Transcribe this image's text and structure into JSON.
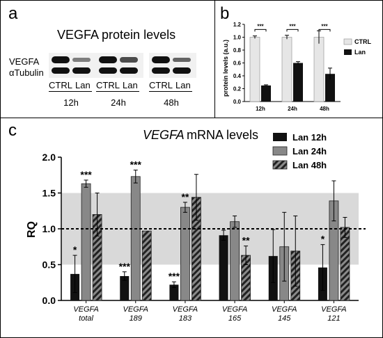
{
  "panels": {
    "a": "a",
    "b": "b",
    "c": "c"
  },
  "panel_a": {
    "title": "VEGFA protein levels",
    "row_labels": [
      "VEGFA",
      "αTubulin"
    ],
    "lane_labels": [
      "CTRL",
      "Lan"
    ],
    "timepoints": [
      "12h",
      "24h",
      "48h"
    ],
    "vegfa_band_intensity": [
      [
        1.0,
        0.25
      ],
      [
        1.0,
        0.6
      ],
      [
        1.0,
        0.43
      ]
    ]
  },
  "colors": {
    "ctrl": "#e6e6e6",
    "lan": "#111111",
    "lan12": "#111111",
    "lan24": "#888888",
    "lan48": "#707070",
    "band": "#d9d9d9",
    "hatch": "#222222"
  },
  "chart_data": [
    {
      "type": "bar",
      "title": "",
      "ylabel": "protein levels (a.u.)",
      "ylim": [
        0,
        1.2
      ],
      "yticks": [
        "0.0",
        "0.2",
        "0.4",
        "0.6",
        "0.8",
        "1.0",
        "1.2"
      ],
      "categories": [
        "12h",
        "24h",
        "48h"
      ],
      "series": [
        {
          "name": "CTRL",
          "values": [
            1.0,
            1.0,
            1.0
          ],
          "err": [
            0.02,
            0.03,
            0.1
          ]
        },
        {
          "name": "Lan",
          "values": [
            0.25,
            0.6,
            0.43
          ],
          "err": [
            0.01,
            0.02,
            0.09
          ]
        }
      ],
      "annotations": [
        "***",
        "***",
        "***"
      ],
      "legend": "top-right"
    },
    {
      "type": "bar",
      "title_gene": "VEGFA",
      "title_rest": " mRNA levels",
      "ylabel": "RQ",
      "ylim": [
        0,
        2.0
      ],
      "yticks": [
        "0.0",
        "0.5",
        "1.0",
        "1.5",
        "2.0"
      ],
      "reference_line": 1.0,
      "shaded_band": [
        0.5,
        1.5
      ],
      "categories": [
        {
          "gene": "VEGFA",
          "sub": "total"
        },
        {
          "gene": "VEGFA",
          "sub": "189"
        },
        {
          "gene": "VEGFA",
          "sub": "183"
        },
        {
          "gene": "VEGFA",
          "sub": "165"
        },
        {
          "gene": "VEGFA",
          "sub": "145"
        },
        {
          "gene": "VEGFA",
          "sub": "121"
        }
      ],
      "series": [
        {
          "name": "Lan 12h",
          "values": [
            0.37,
            0.34,
            0.22,
            0.91,
            0.62,
            0.46
          ],
          "err": [
            0.26,
            0.06,
            0.04,
            0.07,
            0.37,
            0.32
          ],
          "sig": [
            "*",
            "***",
            "***",
            "",
            "",
            "*"
          ]
        },
        {
          "name": "Lan 24h",
          "values": [
            1.63,
            1.73,
            1.3,
            1.1,
            0.75,
            1.39
          ],
          "err": [
            0.05,
            0.09,
            0.07,
            0.08,
            0.48,
            0.28
          ],
          "sig": [
            "***",
            "***",
            "**",
            "",
            "",
            ""
          ]
        },
        {
          "name": "Lan 48h",
          "values": [
            1.2,
            0.97,
            1.44,
            0.63,
            0.69,
            1.02
          ],
          "err": [
            0.3,
            0.0,
            0.32,
            0.13,
            0.49,
            0.14
          ],
          "sig": [
            "",
            "",
            "",
            "**",
            "",
            ""
          ]
        }
      ],
      "legend": "top-right"
    }
  ]
}
